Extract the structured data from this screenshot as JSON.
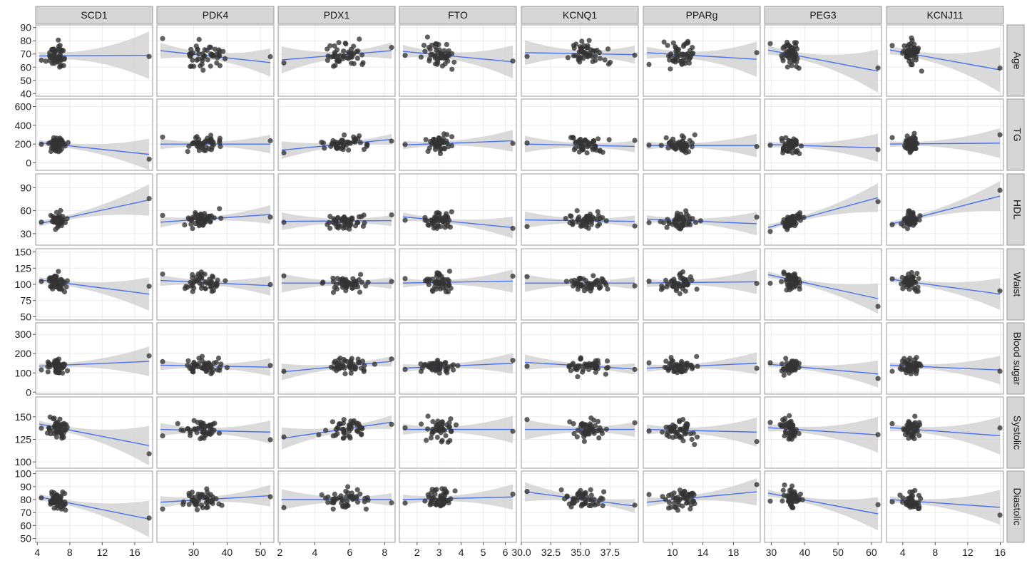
{
  "chart_data": {
    "type": "scatter",
    "subtype": "facet-grid scatter with linear fit and confidence band",
    "columns": [
      "SCD1",
      "PDK4",
      "PDX1",
      "FTO",
      "KCNQ1",
      "PPARg",
      "PEG3",
      "KCNJ11"
    ],
    "rows": [
      "Age",
      "TG",
      "HDL",
      "Waist",
      "Blood sugar",
      "Systolic",
      "Diastolic"
    ],
    "x_axes": [
      {
        "range": [
          3.8,
          18.2
        ],
        "ticks": [
          4,
          8,
          12,
          16
        ],
        "labels": [
          "4",
          "8",
          "12",
          "16"
        ]
      },
      {
        "range": [
          19,
          54
        ],
        "ticks": [
          30,
          40,
          50
        ],
        "labels": [
          "30",
          "40",
          "50"
        ]
      },
      {
        "range": [
          1.9,
          8.6
        ],
        "ticks": [
          2,
          4,
          6,
          8
        ],
        "labels": [
          "2",
          "4",
          "6",
          "8"
        ]
      },
      {
        "range": [
          1.2,
          6.5
        ],
        "ticks": [
          2,
          3,
          4,
          5,
          6
        ],
        "labels": [
          "2",
          "3",
          "4",
          "5",
          "6"
        ]
      },
      {
        "range": [
          30.0,
          39.9
        ],
        "ticks": [
          30.0,
          32.5,
          35.0,
          37.5
        ],
        "labels": [
          "30.0",
          "32.5",
          "35.0",
          "37.5"
        ]
      },
      {
        "range": [
          6.2,
          21.5
        ],
        "ticks": [
          10,
          14,
          18
        ],
        "labels": [
          "10",
          "14",
          "18"
        ]
      },
      {
        "range": [
          28,
          63
        ],
        "ticks": [
          30,
          40,
          50,
          60
        ],
        "labels": [
          "30",
          "40",
          "50",
          "60"
        ]
      },
      {
        "range": [
          2.0,
          16.4
        ],
        "ticks": [
          4,
          8,
          12,
          16
        ],
        "labels": [
          "4",
          "8",
          "12",
          "16"
        ]
      }
    ],
    "y_axes": [
      {
        "range": [
          38,
          92
        ],
        "ticks": [
          40,
          50,
          60,
          70,
          80,
          90
        ],
        "labels": [
          "40",
          "50",
          "60",
          "70",
          "80",
          "90"
        ]
      },
      {
        "range": [
          -80,
          680
        ],
        "ticks": [
          0,
          200,
          400,
          600
        ],
        "labels": [
          "0",
          "200",
          "400",
          "600"
        ]
      },
      {
        "range": [
          15,
          108
        ],
        "ticks": [
          30,
          60,
          90
        ],
        "labels": [
          "30",
          "60",
          "90"
        ]
      },
      {
        "range": [
          45,
          155
        ],
        "ticks": [
          50,
          75,
          100,
          125,
          150
        ],
        "labels": [
          "50",
          "75",
          "100",
          "125",
          "150"
        ]
      },
      {
        "range": [
          -10,
          360
        ],
        "ticks": [
          0,
          100,
          200,
          300
        ],
        "labels": [
          "0",
          "100",
          "200",
          "300"
        ]
      },
      {
        "range": [
          93,
          172
        ],
        "ticks": [
          100,
          125,
          150
        ],
        "labels": [
          "100",
          "125",
          "150"
        ]
      },
      {
        "range": [
          47,
          102
        ],
        "ticks": [
          50,
          60,
          70,
          80,
          90,
          100
        ],
        "labels": [
          "50",
          "60",
          "70",
          "80",
          "90",
          "100"
        ]
      }
    ],
    "fits": [
      [
        [
          68.5,
          69.0
        ],
        [
          72.5,
          63.5
        ],
        [
          65.5,
          72.5
        ],
        [
          72.0,
          64.0
        ],
        [
          71.0,
          69.5
        ],
        [
          71.0,
          66.0
        ],
        [
          73.0,
          57.0
        ],
        [
          73.0,
          58.0
        ]
      ],
      [
        [
          215,
          90
        ],
        [
          200,
          200
        ],
        [
          135,
          250
        ],
        [
          190,
          235
        ],
        [
          200,
          175
        ],
        [
          185,
          185
        ],
        [
          195,
          160
        ],
        [
          200,
          210
        ]
      ],
      [
        [
          43,
          74
        ],
        [
          45,
          55
        ],
        [
          46,
          47
        ],
        [
          52,
          38
        ],
        [
          48,
          46
        ],
        [
          49,
          43
        ],
        [
          38,
          77
        ],
        [
          42,
          79
        ]
      ],
      [
        [
          107,
          85
        ],
        [
          106,
          98
        ],
        [
          102,
          102
        ],
        [
          102,
          105
        ],
        [
          102,
          102
        ],
        [
          102,
          104
        ],
        [
          115,
          78
        ],
        [
          108,
          85
        ]
      ],
      [
        [
          135,
          160
        ],
        [
          140,
          130
        ],
        [
          105,
          160
        ],
        [
          125,
          150
        ],
        [
          155,
          120
        ],
        [
          125,
          150
        ],
        [
          145,
          95
        ],
        [
          140,
          115
        ]
      ],
      [
        [
          142,
          118
        ],
        [
          136,
          133
        ],
        [
          126,
          144
        ],
        [
          136,
          136
        ],
        [
          136,
          136
        ],
        [
          136,
          133
        ],
        [
          138,
          130
        ],
        [
          138,
          129
        ]
      ],
      [
        [
          82,
          65
        ],
        [
          78,
          83
        ],
        [
          80,
          80
        ],
        [
          80,
          82
        ],
        [
          86,
          75
        ],
        [
          78,
          86
        ],
        [
          85,
          69
        ],
        [
          80,
          74
        ]
      ]
    ],
    "grid": true,
    "legend": "none",
    "colors": {
      "points": "#333333",
      "fit_line": "#4a72f0",
      "band": "#d3d3d3",
      "strip": "#d6d6d6",
      "panel_border": "#9a9a9a",
      "grid": "#ececec"
    }
  }
}
